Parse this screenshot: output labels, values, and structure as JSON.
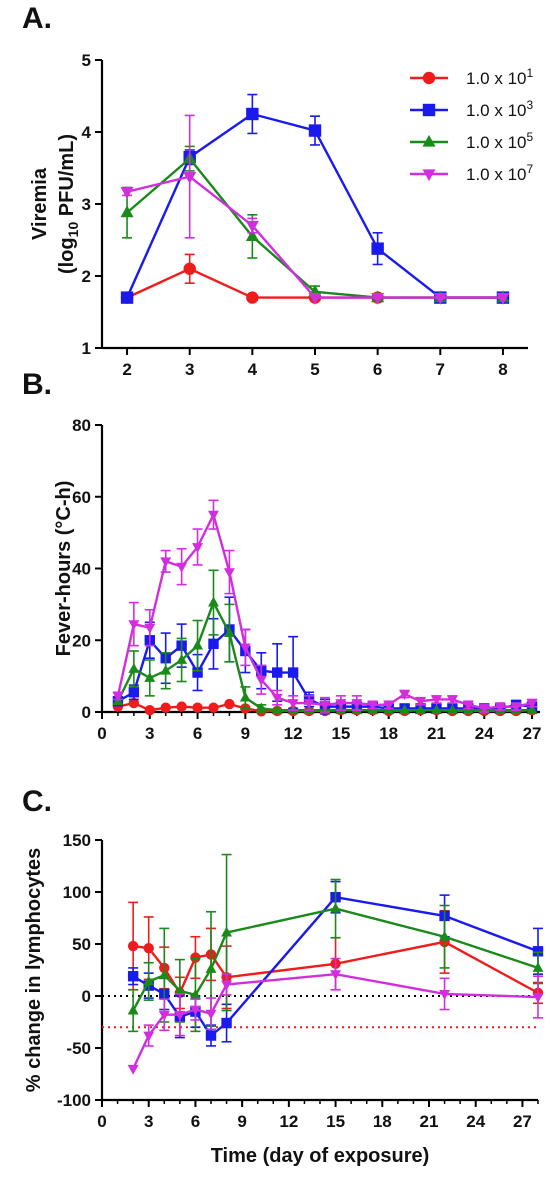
{
  "colors": {
    "s1": "#ee1c1c",
    "s2": "#1a1aee",
    "s3": "#1a8a1a",
    "s4": "#d22ee0"
  },
  "legend": {
    "s1": {
      "base": "1.0 x 10",
      "exp": "1"
    },
    "s2": {
      "base": "1.0 x 10",
      "exp": "3"
    },
    "s3": {
      "base": "1.0 x 10",
      "exp": "5"
    },
    "s4": {
      "base": "1.0 x 10",
      "exp": "7"
    }
  },
  "chart_data": [
    {
      "panel": "A.",
      "type": "line",
      "ylabel": {
        "line1": "Viremia",
        "line2_pre": "(log",
        "line2_sub": "10",
        "line2_post": " PFU/mL)"
      },
      "xlim": [
        1.6,
        8.4
      ],
      "ylim": [
        1,
        5
      ],
      "xticks": [
        2,
        3,
        4,
        5,
        6,
        7,
        8
      ],
      "yticks": [
        1,
        2,
        3,
        4,
        5
      ],
      "legend_position": "top-right",
      "series": [
        {
          "key": "s1",
          "marker": "circle",
          "x": [
            2,
            3,
            4,
            5,
            6,
            7,
            8
          ],
          "y": [
            1.7,
            2.1,
            1.7,
            1.7,
            1.7,
            1.7,
            1.7
          ],
          "err": [
            0,
            0.2,
            0,
            0,
            0,
            0,
            0
          ]
        },
        {
          "key": "s2",
          "marker": "square",
          "x": [
            2,
            3,
            4,
            5,
            6,
            7,
            8
          ],
          "y": [
            1.7,
            3.65,
            4.25,
            4.02,
            2.38,
            1.7,
            1.7
          ],
          "err": [
            0,
            0.1,
            0.27,
            0.2,
            0.22,
            0,
            0
          ]
        },
        {
          "key": "s3",
          "marker": "triangle-up",
          "x": [
            2,
            3,
            4,
            5,
            6,
            7,
            8
          ],
          "y": [
            2.88,
            3.63,
            2.55,
            1.78,
            1.7,
            1.7,
            1.7
          ],
          "err": [
            0.35,
            0.17,
            0.3,
            0.08,
            0,
            0,
            0
          ]
        },
        {
          "key": "s4",
          "marker": "triangle-down",
          "x": [
            2,
            3,
            4,
            5,
            6,
            7,
            8
          ],
          "y": [
            3.17,
            3.38,
            2.7,
            1.7,
            1.7,
            1.7,
            1.7
          ],
          "err": [
            0.05,
            0.85,
            0.1,
            0,
            0,
            0,
            0
          ]
        }
      ]
    },
    {
      "panel": "B.",
      "type": "line",
      "ylabel": {
        "line1": "Fever-hours (°C-h)"
      },
      "xlim": [
        0,
        27.5
      ],
      "ylim": [
        0,
        80
      ],
      "xticks": [
        0,
        3,
        6,
        9,
        12,
        15,
        18,
        21,
        24,
        27
      ],
      "yticks": [
        0,
        20,
        40,
        60,
        80
      ],
      "series": [
        {
          "key": "s1",
          "marker": "circle",
          "x": [
            1,
            2,
            3,
            4,
            5,
            6,
            7,
            8,
            9,
            10,
            11,
            12,
            13,
            14,
            15,
            16,
            17,
            18,
            19,
            20,
            21,
            22,
            23,
            24,
            25,
            26,
            27
          ],
          "y": [
            1.5,
            2.5,
            0.5,
            1.2,
            1.5,
            1.2,
            1.2,
            2.2,
            1.0,
            0.2,
            0.3,
            0.3,
            0.3,
            0.3,
            0.5,
            0.5,
            0.5,
            0.3,
            0.3,
            0.5,
            0.5,
            0.3,
            0.3,
            0.3,
            0.3,
            0.3,
            0.5
          ],
          "err": [
            0,
            0,
            0,
            0,
            0,
            0,
            0,
            0,
            0,
            0,
            0,
            0,
            0,
            0,
            0,
            0,
            0,
            0,
            0,
            0,
            0,
            0,
            0,
            0,
            0,
            0,
            0
          ]
        },
        {
          "key": "s2",
          "marker": "square",
          "x": [
            1,
            2,
            3,
            4,
            5,
            6,
            7,
            8,
            9,
            10,
            11,
            12,
            13,
            14,
            15,
            16,
            17,
            18,
            19,
            20,
            21,
            22,
            23,
            24,
            25,
            26,
            27
          ],
          "y": [
            3,
            5.5,
            20,
            15,
            18.5,
            11,
            19,
            23,
            17,
            11.5,
            11,
            11,
            3.5,
            1.5,
            1.5,
            1.5,
            1.5,
            1,
            1,
            1,
            1,
            1,
            1,
            1,
            1,
            2,
            1.5
          ],
          "err": [
            0,
            2,
            5,
            7,
            6,
            5,
            7,
            9,
            6,
            5,
            8,
            10,
            2,
            2,
            1,
            1,
            1,
            1,
            1,
            1,
            1,
            1,
            1,
            1,
            1,
            1,
            1
          ]
        },
        {
          "key": "s3",
          "marker": "triangle-up",
          "x": [
            1,
            2,
            3,
            4,
            5,
            6,
            7,
            8,
            9,
            10,
            11,
            12,
            13,
            14,
            15,
            16,
            17,
            18,
            19,
            20,
            21,
            22,
            23,
            24,
            25,
            26,
            27
          ],
          "y": [
            3,
            12,
            9.5,
            11.5,
            14.5,
            18.5,
            30.5,
            22,
            4,
            1,
            0.5,
            0.5,
            0.5,
            0.5,
            0.5,
            0.5,
            0.5,
            0.5,
            0.5,
            0.5,
            0.5,
            0.5,
            0.5,
            0.5,
            0.5,
            0.5,
            0.5
          ],
          "err": [
            0,
            5,
            5,
            5,
            6,
            7,
            9,
            8,
            3,
            1,
            0,
            0,
            0,
            0,
            0,
            0,
            0,
            0,
            0,
            0,
            0,
            0,
            0,
            0,
            0,
            0,
            0
          ]
        },
        {
          "key": "s4",
          "marker": "triangle-down",
          "x": [
            1,
            2,
            3,
            4,
            5,
            6,
            7,
            8,
            9,
            10,
            11,
            12,
            13,
            14,
            15,
            16,
            17,
            18,
            19,
            20,
            21,
            22,
            23,
            24,
            25,
            26,
            27
          ],
          "y": [
            4.5,
            24.5,
            23.5,
            42,
            40.5,
            46,
            55,
            39,
            18,
            9,
            4,
            2.5,
            2.5,
            2,
            2.5,
            2.5,
            2,
            2,
            5,
            3,
            3.5,
            3.5,
            2,
            1,
            1.5,
            1.5,
            2.5
          ],
          "err": [
            1,
            6,
            5,
            3,
            5,
            5,
            4,
            6,
            5,
            4,
            2,
            2,
            2,
            2,
            2,
            2,
            1,
            1,
            1,
            1,
            1,
            1,
            1,
            1,
            1,
            1,
            1
          ]
        }
      ]
    },
    {
      "panel": "C.",
      "type": "line",
      "xlabel": "Time (day of exposure)",
      "ylabel": {
        "line1": "% change in lymphocytes"
      },
      "xlim": [
        0,
        28
      ],
      "ylim": [
        -100,
        150
      ],
      "xticks": [
        0,
        3,
        6,
        9,
        12,
        15,
        18,
        21,
        24,
        27
      ],
      "yticks": [
        -100,
        -50,
        0,
        50,
        100,
        150
      ],
      "reference_lines": [
        {
          "y": 0,
          "color": "#000000",
          "style": "dotted"
        },
        {
          "y": -30,
          "color": "#ee1c1c",
          "style": "dotted"
        }
      ],
      "series": [
        {
          "key": "s1",
          "marker": "circle",
          "x": [
            2,
            3,
            4,
            5,
            6,
            7,
            8,
            15,
            22,
            28
          ],
          "y": [
            48,
            46,
            27,
            3,
            37,
            40,
            18,
            31,
            52,
            3
          ],
          "err": [
            42,
            30,
            20,
            15,
            20,
            25,
            30,
            25,
            30,
            10
          ]
        },
        {
          "key": "s2",
          "marker": "square",
          "x": [
            2,
            3,
            4,
            5,
            6,
            7,
            8,
            15,
            22,
            28
          ],
          "y": [
            19,
            10,
            2,
            -20,
            -15,
            -38,
            -26,
            95,
            77,
            43
          ],
          "err": [
            8,
            12,
            15,
            20,
            15,
            10,
            18,
            15,
            20,
            22
          ]
        },
        {
          "key": "s3",
          "marker": "triangle-up",
          "x": [
            2,
            3,
            4,
            5,
            6,
            7,
            8,
            15,
            22,
            28
          ],
          "y": [
            -14,
            14,
            20,
            5,
            1,
            26,
            61,
            84,
            57,
            27
          ],
          "err": [
            20,
            18,
            45,
            30,
            35,
            55,
            75,
            28,
            30,
            15
          ]
        },
        {
          "key": "s4",
          "marker": "triangle-down",
          "x": [
            2,
            3,
            4,
            5,
            6,
            7,
            8,
            15,
            22,
            28
          ],
          "y": [
            -70,
            -38,
            -18,
            -18,
            -13,
            -17,
            11,
            21,
            2,
            -1
          ],
          "err": [
            0,
            10,
            15,
            20,
            10,
            15,
            10,
            15,
            15,
            20
          ]
        }
      ]
    }
  ]
}
